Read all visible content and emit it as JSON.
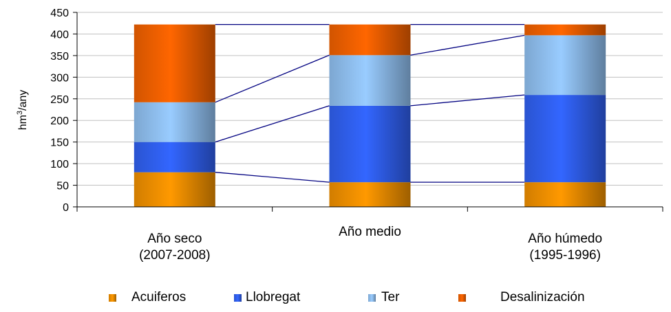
{
  "chart_data": {
    "type": "bar",
    "stacked": true,
    "categories": [
      [
        "Año seco",
        "(2007-2008)"
      ],
      [
        "Año medio"
      ],
      [
        "Año húmedo",
        "(1995-1996)"
      ]
    ],
    "series": [
      {
        "name": "Acuiferos",
        "values": [
          80,
          57,
          57
        ],
        "color": "#ff9900"
      },
      {
        "name": "Llobregat",
        "values": [
          70,
          177,
          202
        ],
        "color": "#3366ff"
      },
      {
        "name": "Ter",
        "values": [
          92,
          117,
          138
        ],
        "color": "#99ccff"
      },
      {
        "name": "Desalinización",
        "values": [
          180,
          71,
          25
        ],
        "color": "#ff6600"
      }
    ],
    "ylabel_base": "hm",
    "ylabel_sup": "3",
    "ylabel_rest": "/any",
    "ylim": [
      0,
      450
    ],
    "yticks": [
      0,
      50,
      100,
      150,
      200,
      250,
      300,
      350,
      400,
      450
    ],
    "grid": true,
    "connector_color": "#000080",
    "legend_position": "bottom"
  }
}
